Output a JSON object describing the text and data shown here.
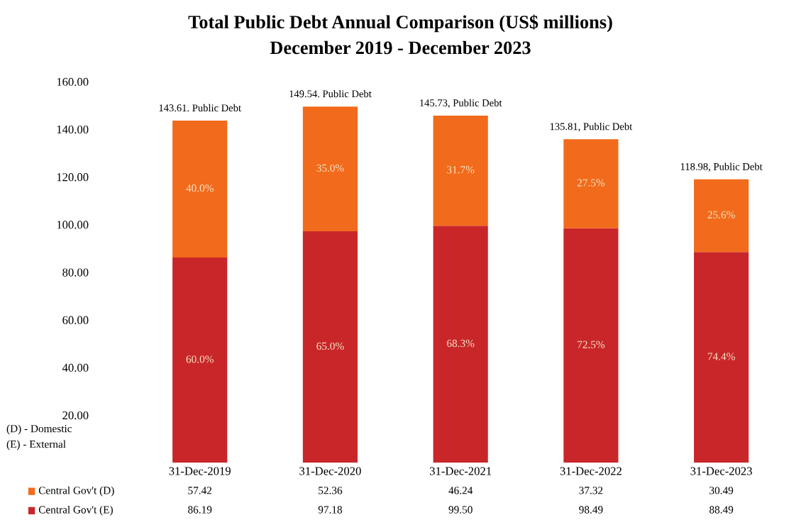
{
  "chart_data": {
    "type": "bar",
    "title": "Total Public Debt Annual Comparison (US$ millions)",
    "subtitle": "December 2019 - December 2023",
    "categories": [
      "31-Dec-2019",
      "31-Dec-2020",
      "31-Dec-2021",
      "31-Dec-2022",
      "31-Dec-2023"
    ],
    "stacked": true,
    "series": [
      {
        "name": "Central Gov't (E)",
        "color": "#c9262a",
        "values": [
          86.19,
          97.18,
          99.5,
          98.49,
          88.49
        ],
        "value_labels": [
          "86.19",
          "97.18",
          "99.50",
          "98.49",
          "88.49"
        ]
      },
      {
        "name": "Central Gov't (D)",
        "color": "#f26a1b",
        "values": [
          57.42,
          52.36,
          46.24,
          37.32,
          30.49
        ],
        "value_labels": [
          "57.42",
          "52.36",
          "46.24",
          "37.32",
          "30.49"
        ]
      }
    ],
    "totals": [
      "143.61. Public Debt",
      "149.54. Public Debt",
      "145.73, Public Debt",
      "135.81, Public Debt",
      "118.98, Public Debt"
    ],
    "legend": "bottom left",
    "ylim": [
      0,
      160
    ],
    "yticks": [
      {
        "value": 20,
        "label": "20.00"
      },
      {
        "value": 40,
        "label": "40.00"
      },
      {
        "value": 60,
        "label": "60.00"
      },
      {
        "value": 80,
        "label": "80.00"
      },
      {
        "value": 100,
        "label": "100.00"
      },
      {
        "value": 120,
        "label": "120.00"
      },
      {
        "value": 140,
        "label": "140.00"
      },
      {
        "value": 160,
        "label": "160.00"
      }
    ],
    "grid": false,
    "annotations": [
      "(D) - Domestic",
      "(E) - External",
      "60.0%",
      "65.0%",
      "68.3%",
      "72.5%",
      "74.4%",
      "40.0%",
      "35.0%",
      "31.7%",
      "27.5%",
      "25.6%"
    ]
  }
}
